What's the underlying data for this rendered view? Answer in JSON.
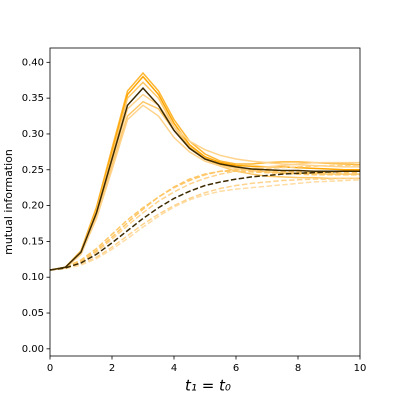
{
  "chart_data": {
    "type": "line",
    "xlabel": "t₁ = t₀",
    "ylabel": "mutual information",
    "x": [
      0,
      0.5,
      1,
      1.5,
      2,
      2.5,
      3,
      3.5,
      4,
      4.5,
      5,
      5.5,
      6,
      6.5,
      7,
      7.5,
      8,
      8.5,
      9,
      9.5,
      10
    ],
    "xlim": [
      0,
      10
    ],
    "ylim": [
      -0.01,
      0.42
    ],
    "xticks": [
      0,
      2,
      4,
      6,
      8,
      10
    ],
    "yticks": [
      {
        "value": 0,
        "label": "0.00"
      },
      0.05,
      {
        "value": 0.1,
        "label": "0.10"
      },
      0.15,
      {
        "value": 0.2,
        "label": "0.20"
      },
      0.25,
      {
        "value": 0.3,
        "label": "0.30"
      },
      0.35,
      {
        "value": 0.4,
        "label": "0.40"
      }
    ],
    "grid": false,
    "series": [
      {
        "color": "#ffb733",
        "linestyle": "solid",
        "values": [
          0.11,
          0.114,
          0.137,
          0.198,
          0.28,
          0.36,
          0.385,
          0.36,
          0.32,
          0.29,
          0.272,
          0.262,
          0.258,
          0.258,
          0.26,
          0.261,
          0.261,
          0.26,
          0.259,
          0.258,
          0.257
        ]
      },
      {
        "color": "#ffa500",
        "linestyle": "solid",
        "values": [
          0.11,
          0.114,
          0.136,
          0.195,
          0.275,
          0.355,
          0.38,
          0.355,
          0.315,
          0.285,
          0.268,
          0.26,
          0.256,
          0.255,
          0.254,
          0.254,
          0.253,
          0.252,
          0.251,
          0.25,
          0.25
        ]
      },
      {
        "color": "#ffc766",
        "linestyle": "solid",
        "values": [
          0.11,
          0.114,
          0.136,
          0.193,
          0.27,
          0.35,
          0.372,
          0.35,
          0.31,
          0.282,
          0.266,
          0.257,
          0.252,
          0.249,
          0.247,
          0.246,
          0.245,
          0.245,
          0.244,
          0.244,
          0.244
        ]
      },
      {
        "color": "#ffd38c",
        "linestyle": "solid",
        "values": [
          0.11,
          0.113,
          0.134,
          0.188,
          0.26,
          0.335,
          0.355,
          0.34,
          0.31,
          0.29,
          0.278,
          0.27,
          0.265,
          0.262,
          0.26,
          0.258,
          0.257,
          0.256,
          0.255,
          0.254,
          0.254
        ]
      },
      {
        "color": "#ffc766",
        "linestyle": "solid",
        "values": [
          0.11,
          0.113,
          0.133,
          0.185,
          0.255,
          0.325,
          0.345,
          0.335,
          0.305,
          0.28,
          0.265,
          0.255,
          0.248,
          0.244,
          0.241,
          0.24,
          0.239,
          0.239,
          0.238,
          0.238,
          0.238
        ]
      },
      {
        "color": "#ffd38c",
        "linestyle": "solid",
        "values": [
          0.11,
          0.113,
          0.132,
          0.182,
          0.25,
          0.32,
          0.34,
          0.325,
          0.295,
          0.275,
          0.262,
          0.255,
          0.252,
          0.252,
          0.254,
          0.256,
          0.258,
          0.26,
          0.26,
          0.26,
          0.26
        ]
      },
      {
        "color": "#ffc766",
        "linestyle": "dashed",
        "values": [
          0.11,
          0.114,
          0.124,
          0.14,
          0.16,
          0.18,
          0.197,
          0.212,
          0.225,
          0.235,
          0.243,
          0.248,
          0.25,
          0.25,
          0.249,
          0.248,
          0.247,
          0.246,
          0.246,
          0.246,
          0.246
        ]
      },
      {
        "color": "#ffd38c",
        "linestyle": "dashed",
        "values": [
          0.11,
          0.113,
          0.121,
          0.135,
          0.153,
          0.172,
          0.19,
          0.206,
          0.219,
          0.23,
          0.238,
          0.244,
          0.248,
          0.25,
          0.252,
          0.253,
          0.254,
          0.255,
          0.256,
          0.256,
          0.256
        ]
      },
      {
        "color": "#ffd38c",
        "linestyle": "dashed",
        "values": [
          0.11,
          0.112,
          0.118,
          0.128,
          0.142,
          0.158,
          0.174,
          0.188,
          0.2,
          0.21,
          0.218,
          0.224,
          0.228,
          0.231,
          0.233,
          0.235,
          0.236,
          0.237,
          0.237,
          0.238,
          0.238
        ]
      },
      {
        "color": "#ffdca3",
        "linestyle": "dashed",
        "values": [
          0.11,
          0.112,
          0.117,
          0.126,
          0.139,
          0.154,
          0.17,
          0.185,
          0.198,
          0.208,
          0.215,
          0.22,
          0.223,
          0.225,
          0.227,
          0.229,
          0.231,
          0.233,
          0.234,
          0.235,
          0.236
        ]
      },
      {
        "color": "#ffc766",
        "linestyle": "dashed",
        "values": [
          0.11,
          0.113,
          0.122,
          0.137,
          0.156,
          0.176,
          0.195,
          0.212,
          0.226,
          0.237,
          0.244,
          0.248,
          0.248,
          0.247,
          0.246,
          0.245,
          0.244,
          0.243,
          0.243,
          0.243,
          0.243
        ]
      },
      {
        "color": "#3d2a00",
        "linestyle": "solid",
        "values": [
          0.11,
          0.114,
          0.135,
          0.19,
          0.265,
          0.34,
          0.364,
          0.34,
          0.305,
          0.28,
          0.265,
          0.258,
          0.254,
          0.251,
          0.25,
          0.249,
          0.249,
          0.248,
          0.248,
          0.248,
          0.248
        ]
      },
      {
        "color": "#3d2a00",
        "linestyle": "dashed",
        "values": [
          0.11,
          0.113,
          0.12,
          0.132,
          0.148,
          0.165,
          0.182,
          0.197,
          0.21,
          0.22,
          0.228,
          0.233,
          0.237,
          0.24,
          0.242,
          0.244,
          0.245,
          0.246,
          0.247,
          0.248,
          0.248
        ]
      }
    ]
  }
}
